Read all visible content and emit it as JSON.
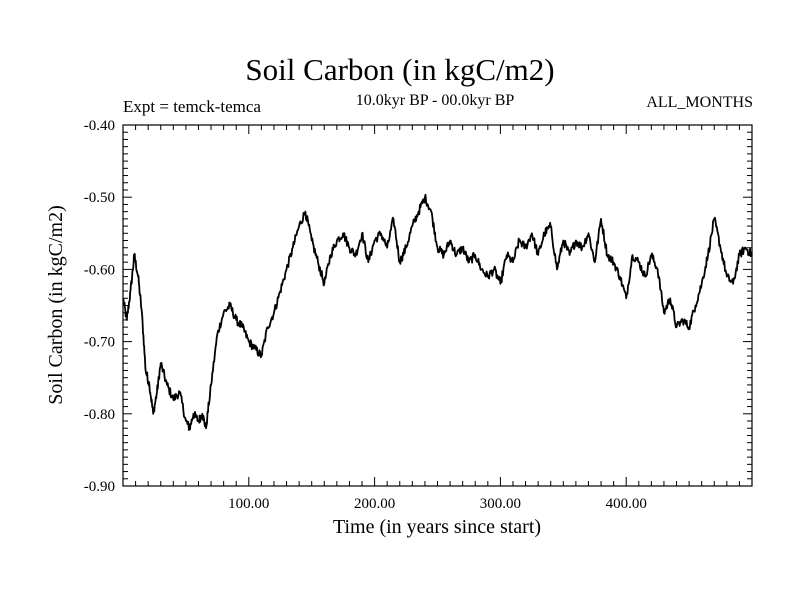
{
  "chart_data": {
    "type": "line",
    "title": "Soil Carbon (in kgC/m2)",
    "subtitle_left": "Expt = temck-temca",
    "subtitle_center": "10.0kyr BP - 00.0kyr BP",
    "subtitle_right": "ALL_MONTHS",
    "xlabel": "Time (in years since start)",
    "ylabel": "Soil Carbon (in kgC/m2)",
    "xlim": [
      0,
      500
    ],
    "ylim": [
      -0.9,
      -0.4
    ],
    "x_ticks": [
      100,
      200,
      300,
      400
    ],
    "x_tick_labels": [
      "100.00",
      "200.00",
      "300.00",
      "400.00"
    ],
    "y_ticks": [
      -0.9,
      -0.8,
      -0.7,
      -0.6,
      -0.5,
      -0.4
    ],
    "y_tick_labels": [
      "-0.90",
      "-0.80",
      "-0.70",
      "-0.60",
      "-0.50",
      "-0.40"
    ],
    "grid": false,
    "series": [
      {
        "name": "temck-temca",
        "color": "#000000",
        "x": [
          0,
          3,
          6,
          9,
          12,
          15,
          18,
          21,
          24,
          27,
          30,
          35,
          40,
          45,
          50,
          53,
          56,
          60,
          63,
          66,
          70,
          75,
          80,
          85,
          90,
          95,
          100,
          105,
          110,
          115,
          120,
          125,
          130,
          135,
          140,
          145,
          150,
          155,
          160,
          165,
          170,
          175,
          180,
          185,
          190,
          195,
          200,
          205,
          210,
          215,
          220,
          225,
          230,
          235,
          240,
          245,
          250,
          255,
          260,
          265,
          270,
          275,
          280,
          285,
          290,
          295,
          300,
          305,
          310,
          315,
          320,
          325,
          330,
          335,
          340,
          345,
          350,
          355,
          360,
          365,
          370,
          375,
          380,
          385,
          390,
          395,
          400,
          405,
          410,
          415,
          420,
          425,
          430,
          435,
          440,
          445,
          450,
          455,
          460,
          465,
          470,
          475,
          480,
          485,
          490,
          495,
          500
        ],
        "values": [
          -0.64,
          -0.67,
          -0.63,
          -0.58,
          -0.61,
          -0.66,
          -0.74,
          -0.76,
          -0.8,
          -0.77,
          -0.73,
          -0.76,
          -0.78,
          -0.77,
          -0.81,
          -0.82,
          -0.8,
          -0.81,
          -0.8,
          -0.82,
          -0.76,
          -0.69,
          -0.66,
          -0.65,
          -0.67,
          -0.68,
          -0.7,
          -0.71,
          -0.72,
          -0.68,
          -0.66,
          -0.63,
          -0.6,
          -0.57,
          -0.54,
          -0.52,
          -0.56,
          -0.59,
          -0.62,
          -0.58,
          -0.56,
          -0.55,
          -0.57,
          -0.58,
          -0.55,
          -0.59,
          -0.56,
          -0.55,
          -0.57,
          -0.53,
          -0.59,
          -0.57,
          -0.54,
          -0.52,
          -0.5,
          -0.52,
          -0.57,
          -0.58,
          -0.56,
          -0.58,
          -0.57,
          -0.59,
          -0.58,
          -0.6,
          -0.61,
          -0.6,
          -0.62,
          -0.58,
          -0.59,
          -0.56,
          -0.57,
          -0.55,
          -0.58,
          -0.55,
          -0.54,
          -0.6,
          -0.56,
          -0.58,
          -0.56,
          -0.57,
          -0.55,
          -0.59,
          -0.53,
          -0.58,
          -0.59,
          -0.61,
          -0.64,
          -0.58,
          -0.59,
          -0.61,
          -0.58,
          -0.6,
          -0.66,
          -0.64,
          -0.68,
          -0.67,
          -0.68,
          -0.65,
          -0.62,
          -0.58,
          -0.53,
          -0.57,
          -0.61,
          -0.62,
          -0.58,
          -0.57,
          -0.58
        ]
      }
    ]
  }
}
